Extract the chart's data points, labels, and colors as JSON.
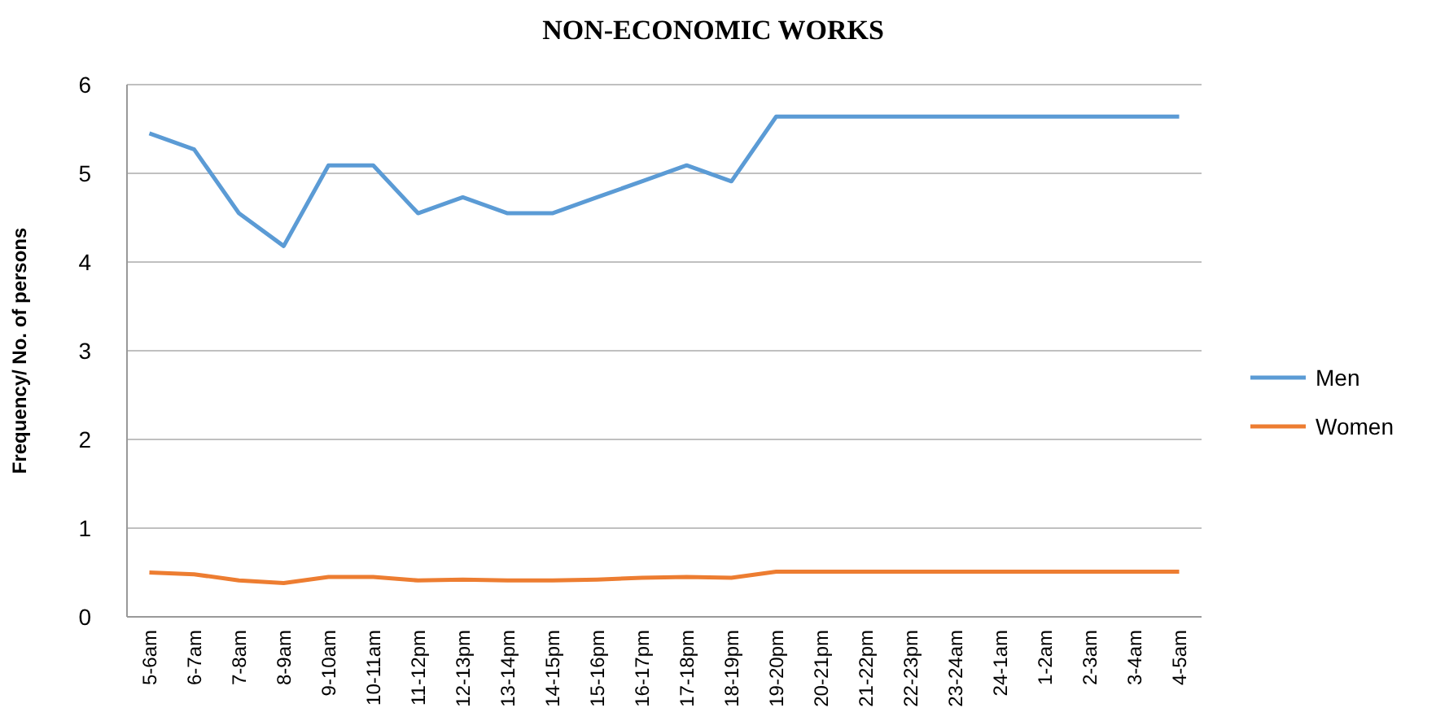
{
  "chart_data": {
    "type": "line",
    "title": "NON-ECONOMIC WORKS",
    "ylabel": "Frequency/ No. of persons",
    "categories": [
      "5-6am",
      "6-7am",
      "7-8am",
      "8-9am",
      "9-10am",
      "10-11am",
      "11-12pm",
      "12-13pm",
      "13-14pm",
      "14-15pm",
      "15-16pm",
      "16-17pm",
      "17-18pm",
      "18-19pm",
      "19-20pm",
      "20-21pm",
      "21-22pm",
      "22-23pm",
      "23-24am",
      "24-1am",
      "1-2am",
      "2-3am",
      "3-4am",
      "4-5am"
    ],
    "series": [
      {
        "name": "Men",
        "color": "#5b9bd5",
        "values": [
          5.45,
          5.27,
          4.55,
          4.18,
          5.09,
          5.09,
          4.55,
          4.73,
          4.55,
          4.55,
          4.73,
          4.91,
          5.09,
          4.91,
          5.64,
          5.64,
          5.64,
          5.64,
          5.64,
          5.64,
          5.64,
          5.64,
          5.64,
          5.64
        ]
      },
      {
        "name": "Women",
        "color": "#ed7d31",
        "values": [
          0.5,
          0.48,
          0.41,
          0.38,
          0.45,
          0.45,
          0.41,
          0.42,
          0.41,
          0.41,
          0.42,
          0.44,
          0.45,
          0.44,
          0.51,
          0.51,
          0.51,
          0.51,
          0.51,
          0.51,
          0.51,
          0.51,
          0.51,
          0.51
        ]
      }
    ],
    "ylim": [
      0,
      6
    ],
    "yticks": [
      0,
      1,
      2,
      3,
      4,
      5,
      6
    ],
    "grid": "y",
    "legend": "right",
    "marker": "none",
    "line_style": "solid"
  }
}
